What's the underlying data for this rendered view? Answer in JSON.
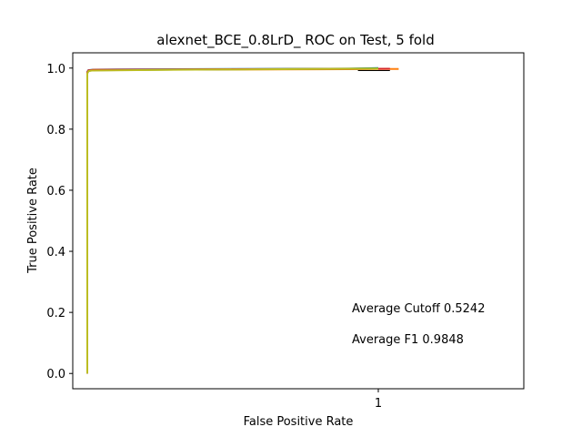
{
  "chart_data": {
    "type": "line",
    "title": "alexnet_BCE_0.8LrD_ ROC on Test, 5 fold",
    "xlabel": "False Positive Rate",
    "ylabel": "True Positive Rate",
    "xlim": [
      -0.05,
      1.5
    ],
    "ylim": [
      -0.05,
      1.05
    ],
    "x_ticks": [
      1
    ],
    "x_tick_labels": [
      "1"
    ],
    "y_ticks": [
      0.0,
      0.2,
      0.4,
      0.6,
      0.8,
      1.0
    ],
    "y_tick_labels": [
      "0.0",
      "0.2",
      "0.4",
      "0.6",
      "0.8",
      "1.0"
    ],
    "grid": false,
    "annotations": [
      "Average Cutoff 0.5242",
      "Average F1 0.9848"
    ],
    "series": [
      {
        "color": "#1f77b4",
        "x": [
          0,
          0,
          0.004,
          0.02,
          0.2,
          0.5,
          0.9,
          1.0
        ],
        "y": [
          0,
          0.988,
          0.993,
          0.995,
          0.996,
          0.997,
          0.998,
          1.0
        ]
      },
      {
        "color": "#ff7f0e",
        "x": [
          0,
          0,
          0.004,
          0.02,
          0.3,
          0.8,
          1.0,
          1.07
        ],
        "y": [
          0,
          0.986,
          0.992,
          0.994,
          0.995,
          0.996,
          0.997,
          0.997
        ]
      },
      {
        "color": "#2ca02c",
        "x": [
          0,
          0,
          0.005,
          0.03,
          0.3,
          0.7,
          1.0
        ],
        "y": [
          0,
          0.984,
          0.991,
          0.993,
          0.995,
          0.997,
          0.999
        ]
      },
      {
        "color": "#d62728",
        "x": [
          0,
          0,
          0.003,
          0.02,
          0.4,
          0.9,
          1.04
        ],
        "y": [
          0,
          0.985,
          0.992,
          0.994,
          0.996,
          0.997,
          0.998
        ]
      },
      {
        "color": "#bcbd22",
        "x": [
          0,
          0,
          0.004,
          0.015,
          0.25,
          0.6,
          1.0
        ],
        "y": [
          0,
          0.982,
          0.99,
          0.992,
          0.994,
          0.996,
          0.998
        ]
      }
    ],
    "extra_marks": [
      {
        "color": "#000000",
        "x": [
          0.93,
          1.04
        ],
        "y": [
          0.992,
          0.992
        ]
      }
    ]
  }
}
